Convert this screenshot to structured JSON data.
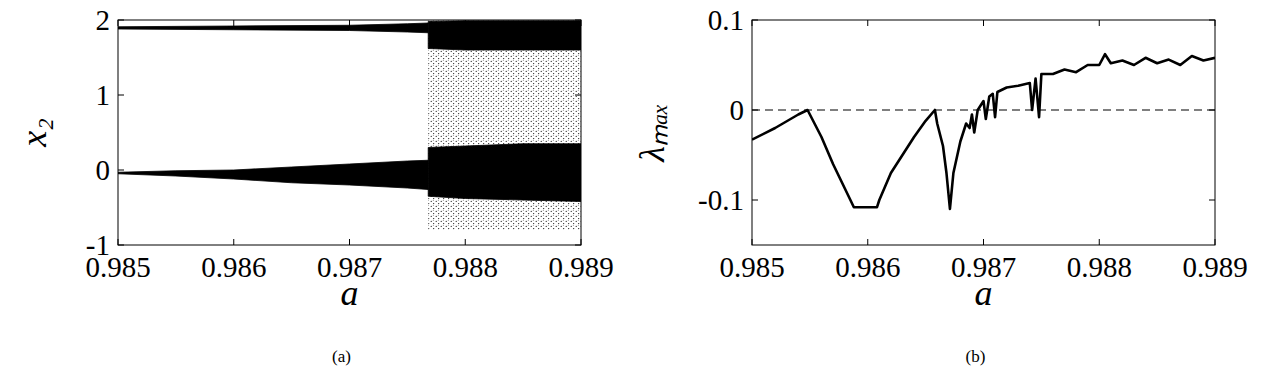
{
  "chart_data": [
    {
      "type": "band",
      "title": "(a)",
      "xlabel": "a",
      "ylabel": "x₂",
      "xlim": [
        0.985,
        0.989
      ],
      "xticks": [
        0.985,
        0.986,
        0.987,
        0.988,
        0.989
      ],
      "ylim": [
        -1,
        2
      ],
      "yticks": [
        -1,
        0,
        1,
        2
      ],
      "series": [
        {
          "color": "#000000",
          "marker": "dot",
          "x": [
            0.98768,
            0.989
          ],
          "lower": [
            -0.8,
            -0.8
          ],
          "upper": [
            2.0,
            2.0
          ]
        },
        {
          "color": "#000000",
          "x": [
            0.985,
            0.986,
            0.987,
            0.9875,
            0.98768
          ],
          "lower": [
            1.88,
            1.87,
            1.86,
            1.84,
            1.83
          ],
          "upper": [
            1.91,
            1.92,
            1.93,
            1.95,
            1.96
          ]
        },
        {
          "color": "#000000",
          "x": [
            0.985,
            0.9855,
            0.986,
            0.9865,
            0.987,
            0.9875,
            0.98768
          ],
          "lower": [
            -0.05,
            -0.08,
            -0.12,
            -0.17,
            -0.2,
            -0.24,
            -0.26
          ],
          "upper": [
            -0.03,
            -0.01,
            0.0,
            0.04,
            0.08,
            0.12,
            0.13
          ]
        },
        {
          "color": "#000000",
          "x": [
            0.98768,
            0.988,
            0.9885,
            0.989
          ],
          "lower": [
            1.62,
            1.6,
            1.6,
            1.6
          ],
          "upper": [
            1.98,
            1.99,
            1.99,
            1.99
          ]
        },
        {
          "color": "#000000",
          "x": [
            0.98768,
            0.988,
            0.9885,
            0.989
          ],
          "lower": [
            -0.35,
            -0.38,
            -0.4,
            -0.42
          ],
          "upper": [
            0.3,
            0.32,
            0.35,
            0.35
          ]
        }
      ]
    },
    {
      "type": "line",
      "title": "(b)",
      "xlabel": "a",
      "ylabel": "λₘₐₓ",
      "xlim": [
        0.985,
        0.989
      ],
      "xticks": [
        0.985,
        0.986,
        0.987,
        0.988,
        0.989
      ],
      "ylim": [
        -0.15,
        0.1
      ],
      "yticks": [
        -0.1,
        0,
        0.1
      ],
      "reference_y": 0,
      "series": [
        {
          "color": "#000000",
          "x": [
            0.985,
            0.9852,
            0.9854,
            0.98548,
            0.9856,
            0.9857,
            0.98585,
            0.98588,
            0.98608,
            0.9861,
            0.9862,
            0.9863,
            0.9864,
            0.9865,
            0.98658,
            0.9866,
            0.98665,
            0.98668,
            0.98671,
            0.98674,
            0.9868,
            0.98685,
            0.98688,
            0.9869,
            0.98692,
            0.98695,
            0.987,
            0.98702,
            0.98705,
            0.98708,
            0.9871,
            0.98712,
            0.9872,
            0.9873,
            0.9874,
            0.98742,
            0.98745,
            0.98748,
            0.9875,
            0.9876,
            0.9877,
            0.9878,
            0.9879,
            0.988,
            0.98805,
            0.9881,
            0.9882,
            0.9883,
            0.9884,
            0.9885,
            0.9886,
            0.9887,
            0.9888,
            0.9889,
            0.989
          ],
          "values": [
            -0.033,
            -0.02,
            -0.005,
            0.0,
            -0.03,
            -0.06,
            -0.1,
            -0.108,
            -0.108,
            -0.1,
            -0.07,
            -0.05,
            -0.03,
            -0.012,
            0.0,
            -0.015,
            -0.04,
            -0.07,
            -0.11,
            -0.07,
            -0.035,
            -0.015,
            -0.02,
            -0.005,
            -0.025,
            0.0,
            0.01,
            -0.01,
            0.015,
            0.018,
            -0.008,
            0.02,
            0.025,
            0.027,
            0.03,
            0.0,
            0.035,
            -0.008,
            0.04,
            0.04,
            0.045,
            0.042,
            0.05,
            0.05,
            0.062,
            0.052,
            0.055,
            0.05,
            0.058,
            0.052,
            0.056,
            0.05,
            0.06,
            0.055,
            0.058
          ]
        }
      ]
    }
  ]
}
